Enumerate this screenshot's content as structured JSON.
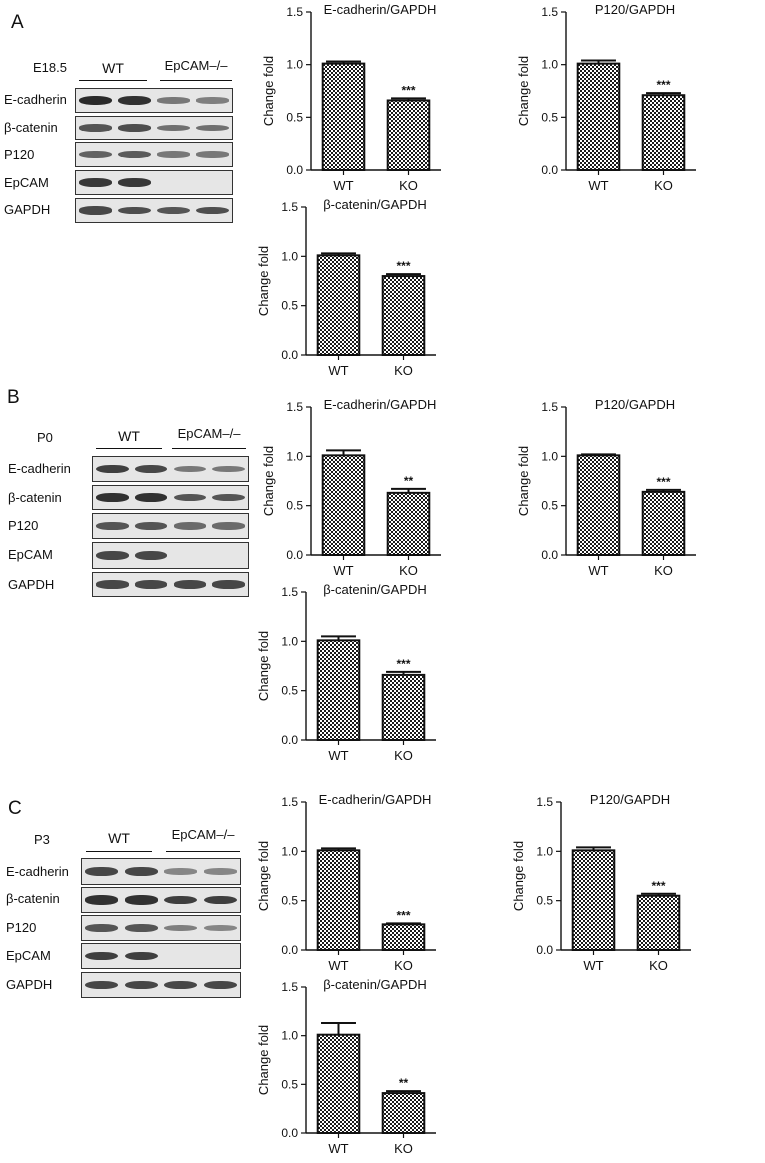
{
  "colors": {
    "bar_pattern_dark": "#1a1a1a",
    "bar_pattern_light": "#ffffff",
    "blot_background": "#e6e6e6",
    "band_dark": "#2a2a2a"
  },
  "panels": [
    {
      "letter": "A",
      "stage": "E18.5",
      "group_wt": "WT",
      "group_ko": "EpCAM–/–",
      "proteins": [
        "E-cadherin",
        "β-catenin",
        "P120",
        "EpCAM",
        "GAPDH"
      ],
      "band_levels": [
        [
          1.0,
          0.95,
          0.45,
          0.4
        ],
        [
          0.7,
          0.75,
          0.5,
          0.5
        ],
        [
          0.6,
          0.65,
          0.45,
          0.45
        ],
        [
          0.9,
          0.9,
          0.0,
          0.0
        ],
        [
          0.8,
          0.75,
          0.7,
          0.75
        ]
      ]
    },
    {
      "letter": "B",
      "stage": "P0",
      "group_wt": "WT",
      "group_ko": "EpCAM–/–",
      "proteins": [
        "E-cadherin",
        "β-catenin",
        "P120",
        "EpCAM",
        "GAPDH"
      ],
      "band_levels": [
        [
          0.85,
          0.8,
          0.45,
          0.45
        ],
        [
          0.95,
          0.95,
          0.7,
          0.7
        ],
        [
          0.7,
          0.7,
          0.55,
          0.55
        ],
        [
          0.8,
          0.8,
          0.0,
          0.0
        ],
        [
          0.8,
          0.8,
          0.8,
          0.8
        ]
      ]
    },
    {
      "letter": "C",
      "stage": "P3",
      "group_wt": "WT",
      "group_ko": "EpCAM–/–",
      "proteins": [
        "E-cadherin",
        "β-catenin",
        "P120",
        "EpCAM",
        "GAPDH"
      ],
      "band_levels": [
        [
          0.8,
          0.8,
          0.35,
          0.35
        ],
        [
          0.95,
          0.95,
          0.85,
          0.85
        ],
        [
          0.7,
          0.7,
          0.4,
          0.35
        ],
        [
          0.85,
          0.85,
          0.0,
          0.0
        ],
        [
          0.8,
          0.8,
          0.8,
          0.8
        ]
      ]
    }
  ],
  "chart_data": [
    {
      "panel": "A",
      "type": "bar",
      "title": "E-cadherin/GAPDH",
      "ylabel": "Change fold",
      "categories": [
        "WT",
        "KO"
      ],
      "values": [
        1.01,
        0.66
      ],
      "errors": [
        0.02,
        0.02
      ],
      "significance": [
        "",
        "***"
      ],
      "ylim": [
        0,
        1.5
      ],
      "yticks": [
        "0.0",
        "0.5",
        "1.0",
        "1.5"
      ]
    },
    {
      "panel": "A",
      "type": "bar",
      "title": "P120/GAPDH",
      "ylabel": "Change fold",
      "categories": [
        "WT",
        "KO"
      ],
      "values": [
        1.01,
        0.71
      ],
      "errors": [
        0.03,
        0.02
      ],
      "significance": [
        "",
        "***"
      ],
      "ylim": [
        0,
        1.5
      ],
      "yticks": [
        "0.0",
        "0.5",
        "1.0",
        "1.5"
      ]
    },
    {
      "panel": "A",
      "type": "bar",
      "title": "β-catenin/GAPDH",
      "ylabel": "Change fold",
      "categories": [
        "WT",
        "KO"
      ],
      "values": [
        1.01,
        0.8
      ],
      "errors": [
        0.02,
        0.02
      ],
      "significance": [
        "",
        "***"
      ],
      "ylim": [
        0,
        1.5
      ],
      "yticks": [
        "0.0",
        "0.5",
        "1.0",
        "1.5"
      ]
    },
    {
      "panel": "B",
      "type": "bar",
      "title": "E-cadherin/GAPDH",
      "ylabel": "Change fold",
      "categories": [
        "WT",
        "KO"
      ],
      "values": [
        1.01,
        0.63
      ],
      "errors": [
        0.05,
        0.04
      ],
      "significance": [
        "",
        "**"
      ],
      "ylim": [
        0,
        1.5
      ],
      "yticks": [
        "0.0",
        "0.5",
        "1.0",
        "1.5"
      ]
    },
    {
      "panel": "B",
      "type": "bar",
      "title": "P120/GAPDH",
      "ylabel": "Change fold",
      "categories": [
        "WT",
        "KO"
      ],
      "values": [
        1.01,
        0.64
      ],
      "errors": [
        0.01,
        0.02
      ],
      "significance": [
        "",
        "***"
      ],
      "ylim": [
        0,
        1.5
      ],
      "yticks": [
        "0.0",
        "0.5",
        "1.0",
        "1.5"
      ]
    },
    {
      "panel": "B",
      "type": "bar",
      "title": "β-catenin/GAPDH",
      "ylabel": "Change fold",
      "categories": [
        "WT",
        "KO"
      ],
      "values": [
        1.01,
        0.66
      ],
      "errors": [
        0.04,
        0.03
      ],
      "significance": [
        "",
        "***"
      ],
      "ylim": [
        0,
        1.5
      ],
      "yticks": [
        "0.0",
        "0.5",
        "1.0",
        "1.5"
      ]
    },
    {
      "panel": "C",
      "type": "bar",
      "title": "E-cadherin/GAPDH",
      "ylabel": "Change fold",
      "categories": [
        "WT",
        "KO"
      ],
      "values": [
        1.01,
        0.26
      ],
      "errors": [
        0.02,
        0.01
      ],
      "significance": [
        "",
        "***"
      ],
      "ylim": [
        0,
        1.5
      ],
      "yticks": [
        "0.0",
        "0.5",
        "1.0",
        "1.5"
      ]
    },
    {
      "panel": "C",
      "type": "bar",
      "title": "P120/GAPDH",
      "ylabel": "Change fold",
      "categories": [
        "WT",
        "KO"
      ],
      "values": [
        1.01,
        0.55
      ],
      "errors": [
        0.03,
        0.02
      ],
      "significance": [
        "",
        "***"
      ],
      "ylim": [
        0,
        1.5
      ],
      "yticks": [
        "0.0",
        "0.5",
        "1.0",
        "1.5"
      ]
    },
    {
      "panel": "C",
      "type": "bar",
      "title": "β-catenin/GAPDH",
      "ylabel": "Change fold",
      "categories": [
        "WT",
        "KO"
      ],
      "values": [
        1.01,
        0.41
      ],
      "errors": [
        0.12,
        0.02
      ],
      "significance": [
        "",
        "**"
      ],
      "ylim": [
        0,
        1.5
      ],
      "yticks": [
        "0.0",
        "0.5",
        "1.0",
        "1.5"
      ]
    }
  ]
}
